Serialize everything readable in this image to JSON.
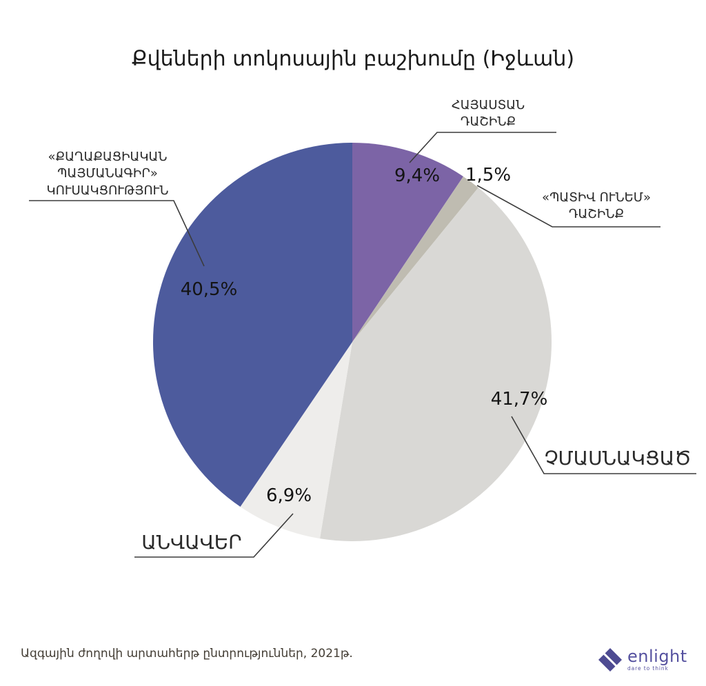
{
  "title": "Քվեների տոկոսային բաշխումը (Իջևան)",
  "chart_data": {
    "type": "pie",
    "title": "Քվեների տոկոսային բաշխումը (Իջևան)",
    "unit": "%",
    "direction": "clockwise",
    "start_angle": "12-oclock",
    "legend_position": "callout-labels",
    "center": [
      511,
      496
    ],
    "radius": 289,
    "slices": [
      {
        "label": "ՀԱՅԱՍՏԱՆ ԴԱՇԻՆՔ",
        "value": 9.4,
        "display": "9,4%",
        "color": "#7c64a6"
      },
      {
        "label": "«ՊԱՏԻՎ ՈՒՆԵՄ» ԴԱՇԻՆՔ",
        "value": 1.5,
        "display": "1,5%",
        "color": "#bfbcb1"
      },
      {
        "label": "ՉՄԱՍՆԱԿՑԱԾ",
        "value": 41.7,
        "display": "41,7%",
        "color": "#d9d8d5"
      },
      {
        "label": "ԱՆՎԱՎԵՐ",
        "value": 6.9,
        "display": "6,9%",
        "color": "#eeedeb"
      },
      {
        "label": "«ՔԱՂԱՔԱՑԻԱԿԱՆ ՊԱՅՄԱՆԱԳԻՐ» ԿՈՒՍԱԿՑՈՒԹՅՈՒՆ",
        "value": 40.5,
        "display": "40,5%",
        "color": "#4d5b9d"
      }
    ]
  },
  "callouts": {
    "hayastan": {
      "line1": "ՀԱՅԱՍՏԱՆ",
      "line2": "ԴԱՇԻՆՔ"
    },
    "pativ": {
      "line1": "«ՊԱՏԻՎ ՈՒՆԵՄ»",
      "line2": "ԴԱՇԻՆՔ"
    },
    "qp": {
      "line1": "«ՔԱՂԱՔԱՑԻԱԿԱՆ",
      "line2": "ՊԱՅՄԱՆԱԳԻՐ»",
      "line3": "ԿՈՒՍԱԿՑՈՒԹՅՈՒՆ"
    },
    "chmasnakcats": {
      "line1": "ՉՄԱՍՆԱԿՑԱԾ"
    },
    "anvaver": {
      "line1": "ԱՆՎԱՎԵՐ"
    }
  },
  "footer": {
    "source": "Ազգային ժողովի արտահերթ ընտրություններ, 2021թ.",
    "logo_text": "enlight",
    "logo_tagline": "dare to think",
    "logo_color": "#55519f",
    "logo_icon_color": "#4e4b92",
    "leader_line_color": "#3c3c3c"
  }
}
